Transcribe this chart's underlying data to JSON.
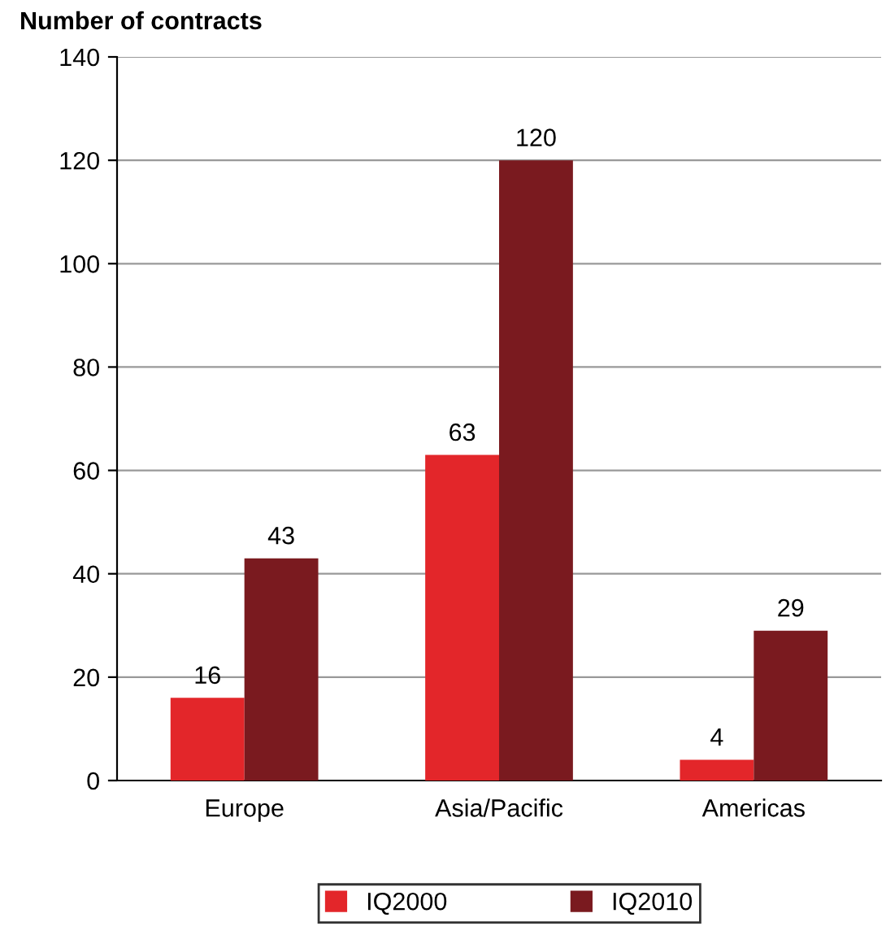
{
  "chart_data": {
    "type": "bar",
    "ylabel": "Number of contracts",
    "categories": [
      "Europe",
      "Asia/Pacific",
      "Americas"
    ],
    "series": [
      {
        "name": "IQ2000",
        "color": "#e3262a",
        "values": [
          16,
          63,
          4
        ]
      },
      {
        "name": "IQ2010",
        "color": "#7a1a1f",
        "values": [
          43,
          120,
          29
        ]
      }
    ],
    "ylim": [
      0,
      140
    ],
    "yticks": [
      0,
      20,
      40,
      60,
      80,
      100,
      120,
      140
    ],
    "grid": "y",
    "legend": "bottom",
    "data_labels": true
  }
}
